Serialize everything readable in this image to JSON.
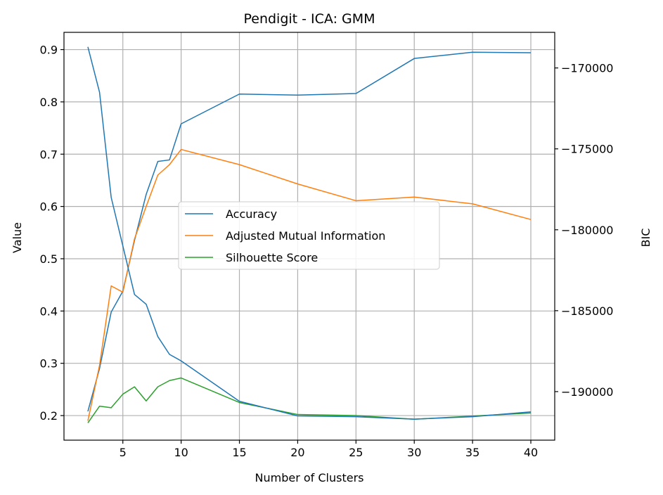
{
  "chart_data": {
    "type": "line",
    "title": "Pendigit - ICA: GMM",
    "xlabel": "Number of Clusters",
    "ylabel": "Value",
    "y2label": "BIC",
    "x_ticks": [
      "5",
      "10",
      "15",
      "20",
      "25",
      "30",
      "35",
      "40"
    ],
    "y_ticks": [
      "0.2",
      "0.3",
      "0.4",
      "0.5",
      "0.6",
      "0.7",
      "0.8",
      "0.9"
    ],
    "y2_ticks": [
      "−170000",
      "−175000",
      "−180000",
      "−185000",
      "−190000"
    ],
    "xlim": [
      -0.05,
      42.05
    ],
    "ylim": [
      0.153,
      0.933
    ],
    "y2lim": [
      -193000,
      -167800
    ],
    "grid": true,
    "legend_placement": "center",
    "x": [
      2,
      3,
      4,
      5,
      6,
      7,
      8,
      9,
      10,
      15,
      20,
      25,
      30,
      35,
      40
    ],
    "series": [
      {
        "name": "Accuracy",
        "axis": "left",
        "color": "#1f77b4",
        "values": [
          0.208,
          0.29,
          0.398,
          0.438,
          0.535,
          0.623,
          0.686,
          0.689,
          0.758,
          0.815,
          0.813,
          0.816,
          0.883,
          0.895,
          0.894
        ]
      },
      {
        "name": "Adjusted Mutual Information",
        "axis": "left",
        "color": "#ff7f0e",
        "values": [
          0.19,
          0.296,
          0.448,
          0.436,
          0.538,
          0.6,
          0.66,
          0.68,
          0.709,
          0.68,
          0.643,
          0.611,
          0.618,
          0.605,
          0.575
        ]
      },
      {
        "name": "Silhouette Score",
        "axis": "left",
        "color": "#2ca02c",
        "values": [
          0.186,
          0.218,
          0.215,
          0.241,
          0.255,
          0.228,
          0.255,
          0.267,
          0.272,
          0.225,
          0.202,
          0.2,
          0.193,
          0.199,
          0.205
        ]
      },
      {
        "axis": "right",
        "color": "#1f77b4",
        "values": [
          -168700,
          -171500,
          -178000,
          -181000,
          -184000,
          -184600,
          -186600,
          -187700,
          -188100,
          -190600,
          -191500,
          -191550,
          -191700,
          -191550,
          -191250
        ]
      }
    ]
  }
}
